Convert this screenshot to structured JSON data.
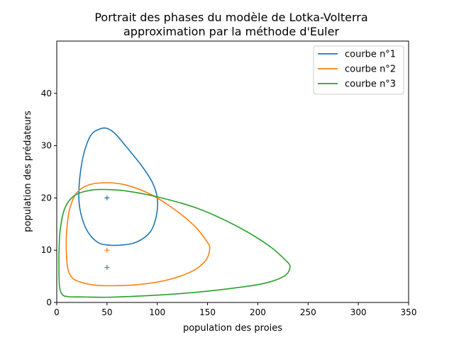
{
  "chart_data": {
    "type": "line",
    "title_line1": "Portrait des phases du modèle de Lotka-Volterra",
    "title_line2": "approximation par la méthode d'Euler",
    "xlabel": "population des proies",
    "ylabel": "population des prédateurs",
    "xlim": [
      0,
      350
    ],
    "ylim": [
      0,
      50
    ],
    "xticks": [
      0,
      50,
      100,
      150,
      200,
      250,
      300,
      350
    ],
    "yticks": [
      0,
      10,
      20,
      30,
      40
    ],
    "grid": false,
    "legend_position": "top-right",
    "series": [
      {
        "name": "courbe n°1",
        "color": "#1f77b4",
        "equilibrium": [
          50,
          20
        ],
        "points": [
          [
            50,
            11
          ],
          [
            40,
            11.6
          ],
          [
            30,
            13.8
          ],
          [
            24,
            17
          ],
          [
            22,
            20
          ],
          [
            23,
            24
          ],
          [
            27,
            28.5
          ],
          [
            34,
            32
          ],
          [
            43,
            33.2
          ],
          [
            50,
            33.3
          ],
          [
            58,
            32.3
          ],
          [
            70,
            29.6
          ],
          [
            85,
            26
          ],
          [
            95,
            23
          ],
          [
            100,
            20
          ],
          [
            99,
            16.5
          ],
          [
            93,
            13.5
          ],
          [
            80,
            11.6
          ],
          [
            65,
            11
          ],
          [
            50,
            11
          ]
        ]
      },
      {
        "name": "courbe n°2",
        "color": "#ff7f0e",
        "equilibrium": [
          50,
          10
        ],
        "points": [
          [
            50,
            3.2
          ],
          [
            35,
            3.4
          ],
          [
            22,
            4
          ],
          [
            15,
            4.8
          ],
          [
            11,
            6.5
          ],
          [
            9.5,
            10
          ],
          [
            10,
            14
          ],
          [
            13,
            18
          ],
          [
            20,
            21
          ],
          [
            32,
            22.5
          ],
          [
            50,
            22.9
          ],
          [
            68,
            22.5
          ],
          [
            90,
            21
          ],
          [
            112,
            18.5
          ],
          [
            135,
            15
          ],
          [
            150,
            11.5
          ],
          [
            152,
            10
          ],
          [
            148,
            8
          ],
          [
            135,
            6
          ],
          [
            110,
            4.3
          ],
          [
            80,
            3.4
          ],
          [
            50,
            3.2
          ]
        ]
      },
      {
        "name": "courbe n°3",
        "color": "#2ca02c",
        "equilibrium": [
          50,
          6.7
        ],
        "points": [
          [
            50,
            1
          ],
          [
            28,
            1.05
          ],
          [
            12,
            1.1
          ],
          [
            5.5,
            1.5
          ],
          [
            2.8,
            3
          ],
          [
            2.2,
            6
          ],
          [
            2.3,
            10
          ],
          [
            3.5,
            14
          ],
          [
            8,
            18
          ],
          [
            18,
            20.5
          ],
          [
            35,
            21.5
          ],
          [
            50,
            21.6
          ],
          [
            70,
            21.3
          ],
          [
            100,
            20.2
          ],
          [
            140,
            18
          ],
          [
            180,
            14.5
          ],
          [
            210,
            11
          ],
          [
            228,
            8
          ],
          [
            232,
            6.7
          ],
          [
            226,
            5
          ],
          [
            205,
            3.6
          ],
          [
            170,
            2.6
          ],
          [
            130,
            1.8
          ],
          [
            90,
            1.3
          ],
          [
            50,
            1
          ]
        ]
      }
    ]
  }
}
